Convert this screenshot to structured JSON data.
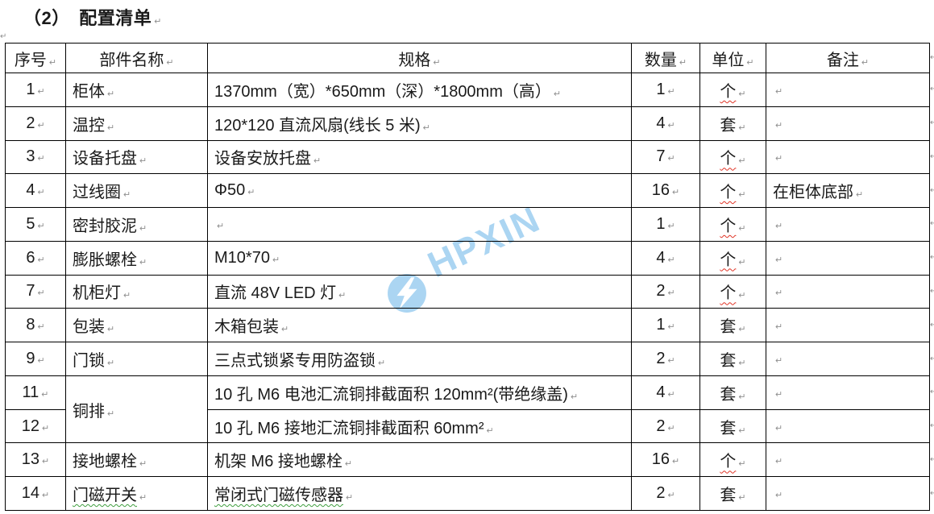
{
  "title": "（2）　配置清单",
  "marks": {
    "paragraph_mark": "↵"
  },
  "colors": {
    "border": "#000000",
    "text": "#1a1a1a",
    "mark": "#8f8f8f",
    "spellred": "#e03325",
    "grammargreen": "#3f9f3f",
    "wm": "#abd5f2"
  },
  "watermark": {
    "text": "HPXIN",
    "logo": "lightning-bolt-icon"
  },
  "table": {
    "headers": [
      "序号",
      "部件名称",
      "规格",
      "数量",
      "单位",
      "备注"
    ],
    "rows": [
      {
        "no": "1",
        "name": "柜体",
        "spec": "1370mm（宽）*650mm（深）*1800mm（高）",
        "qty": "1",
        "unit": "个",
        "unit_wavy": "red",
        "remark": ""
      },
      {
        "no": "2",
        "name": "温控",
        "spec": "120*120 直流风扇(线长 5 米)",
        "qty": "4",
        "unit": "套",
        "remark": ""
      },
      {
        "no": "3",
        "name": "设备托盘",
        "spec": "设备安放托盘",
        "qty": "7",
        "unit": "个",
        "unit_wavy": "red",
        "remark": ""
      },
      {
        "no": "4",
        "name": "过线圈",
        "spec": "Φ50",
        "qty": "16",
        "unit": "个",
        "unit_wavy": "red",
        "remark": "在柜体底部"
      },
      {
        "no": "5",
        "name": "密封胶泥",
        "spec": "",
        "qty": "1",
        "unit": "个",
        "unit_wavy": "red",
        "remark": ""
      },
      {
        "no": "6",
        "name": "膨胀螺栓",
        "spec": "M10*70",
        "qty": "4",
        "unit": "个",
        "unit_wavy": "red",
        "remark": ""
      },
      {
        "no": "7",
        "name": "机柜灯",
        "spec": "直流 48V LED 灯",
        "qty": "2",
        "unit": "个",
        "unit_wavy": "red",
        "remark": ""
      },
      {
        "no": "8",
        "name": "包装",
        "spec": "木箱包装",
        "qty": "1",
        "unit": "套",
        "remark": ""
      },
      {
        "no": "9",
        "name": "门锁",
        "spec": "三点式锁紧专用防盗锁",
        "qty": "2",
        "unit": "套",
        "remark": ""
      },
      {
        "no": "11",
        "name": "铜排",
        "name_rowspan": 2,
        "spec": "10 孔 M6 电池汇流铜排截面积 120mm²(带绝缘盖)",
        "qty": "4",
        "unit": "套",
        "remark": ""
      },
      {
        "no": "12",
        "merge_up": true,
        "spec": "10 孔 M6 接地汇流铜排截面积 60mm²",
        "qty": "2",
        "unit": "套",
        "remark": ""
      },
      {
        "no": "13",
        "name": "接地螺栓",
        "spec": "机架 M6 接地螺栓",
        "qty": "16",
        "unit": "个",
        "unit_wavy": "red",
        "remark": ""
      },
      {
        "no": "14",
        "name": "门磁开关",
        "name_wavy": "green",
        "spec": "常闭式门磁传感器",
        "spec_wavy": "green",
        "qty": "2",
        "unit": "套",
        "remark": ""
      }
    ]
  }
}
